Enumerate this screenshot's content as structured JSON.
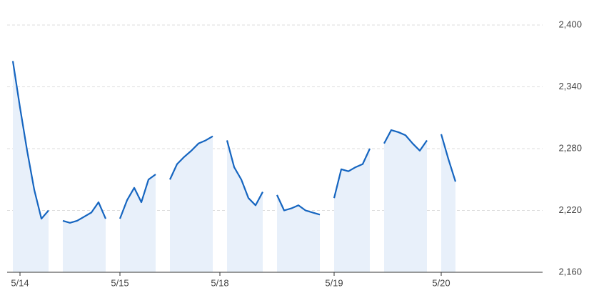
{
  "chart_data": {
    "type": "line",
    "categories": [
      null,
      "5/14",
      null,
      null,
      null,
      null,
      null,
      null,
      null,
      null,
      null,
      null,
      null,
      null,
      null,
      "5/15",
      null,
      null,
      null,
      null,
      null,
      null,
      null,
      null,
      null,
      null,
      null,
      null,
      null,
      "5/18",
      null,
      null,
      null,
      null,
      null,
      null,
      null,
      null,
      null,
      null,
      null,
      null,
      null,
      null,
      null,
      "5/19",
      null,
      null,
      null,
      null,
      null,
      null,
      null,
      null,
      null,
      null,
      null,
      null,
      null,
      null,
      "5/20",
      null,
      null,
      null,
      null,
      null,
      null,
      null,
      null,
      null,
      null,
      null,
      null,
      null,
      null
    ],
    "series": [
      {
        "color": "#1565c0",
        "values": [
          2365,
          2320,
          2278,
          2240,
          2212,
          2220,
          null,
          2210,
          2208,
          2210,
          2214,
          2218,
          2228,
          2212,
          null,
          2212,
          2230,
          2242,
          2228,
          2250,
          2255,
          null,
          2250,
          2265,
          2272,
          2278,
          2285,
          2288,
          2292,
          null,
          2288,
          2262,
          2250,
          2232,
          2225,
          2238,
          null,
          2235,
          2220,
          2222,
          2225,
          2220,
          2218,
          2216,
          null,
          2232,
          2260,
          2258,
          2262,
          2265,
          2280,
          null,
          2285,
          2298,
          2296,
          2293,
          2285,
          2278,
          2288,
          null,
          2294,
          2270,
          2248,
          null,
          null,
          null,
          null,
          null,
          null,
          null,
          null,
          null,
          null,
          null,
          null
        ]
      }
    ],
    "ylim": [
      2160,
      2400
    ],
    "yticks": [
      {
        "value": 2160,
        "label": "2,160"
      },
      {
        "value": 2220,
        "label": "2,220"
      },
      {
        "value": 2280,
        "label": "2,280"
      },
      {
        "value": 2340,
        "label": "2,340"
      },
      {
        "value": 2400,
        "label": "2,400"
      }
    ],
    "grid": true,
    "area_color": "#e8f0fa"
  }
}
